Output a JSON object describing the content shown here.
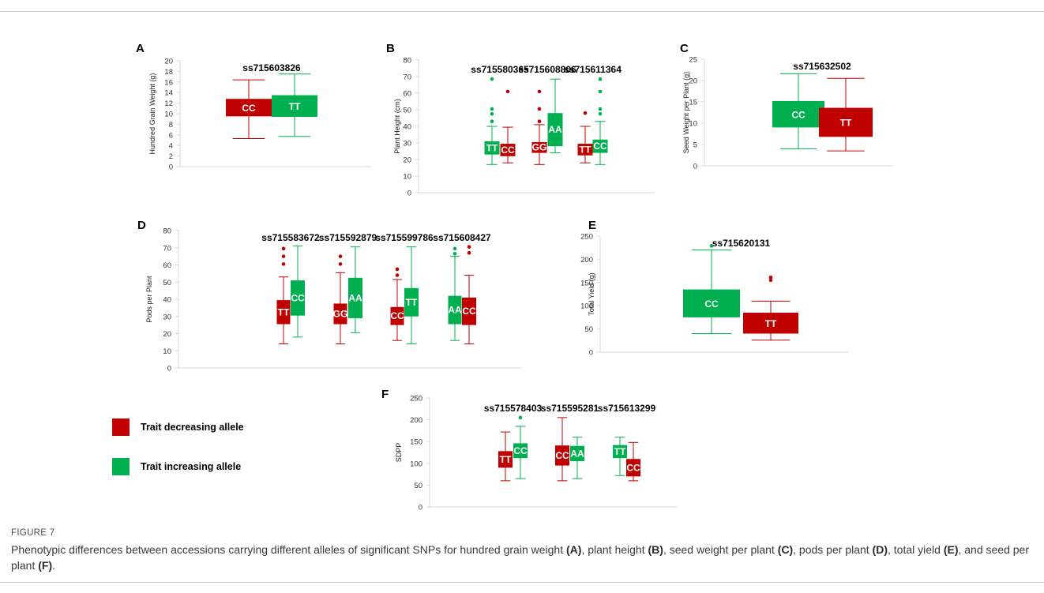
{
  "figure_label": "FIGURE 7",
  "caption": {
    "p1": "Phenotypic differences between accessions carrying different alleles of significant SNPs for hundred grain weight ",
    "A": "(A)",
    "p2": ", plant height ",
    "B": "(B)",
    "p3": ", seed weight per plant ",
    "C": "(C)",
    "p4": ", pods per plant ",
    "D": "(D)",
    "p5": ", total yield ",
    "E": "(E)",
    "p6": ", and seed per plant ",
    "F": "(F)",
    "p7": "."
  },
  "legend": {
    "decreasing": "Trait decreasing allele",
    "increasing": "Trait increasing allele"
  },
  "colors": {
    "decreasing": "#c00000",
    "increasing": "#00b050",
    "axis": "#d9d9d9"
  },
  "chart_data": [
    {
      "panel": "A",
      "type": "box",
      "ylabel": "Hundred Grain Weight (g)",
      "ylim": [
        0,
        20
      ],
      "yticks": [
        0,
        2,
        4,
        6,
        8,
        10,
        12,
        14,
        16,
        18,
        20
      ],
      "groups": [
        {
          "snp": "ss715603826",
          "boxes": [
            {
              "allele": "CC",
              "effect": "decreasing",
              "min": 5.3,
              "q1": 9.5,
              "q3": 12.8,
              "max": 16.4,
              "outliers": []
            },
            {
              "allele": "TT",
              "effect": "increasing",
              "min": 5.7,
              "q1": 9.4,
              "q3": 13.5,
              "max": 17.5,
              "outliers": []
            }
          ]
        }
      ]
    },
    {
      "panel": "B",
      "type": "box",
      "ylabel": "Plant Height (cm)",
      "ylim": [
        0,
        80
      ],
      "yticks": [
        0,
        10,
        20,
        30,
        40,
        50,
        60,
        70,
        80
      ],
      "groups": [
        {
          "snp": "ss715580365",
          "boxes": [
            {
              "allele": "TT",
              "effect": "increasing",
              "min": 17,
              "q1": 23,
              "q3": 31,
              "max": 40,
              "outliers": [
                43,
                47.5,
                50.5,
                68.5
              ]
            },
            {
              "allele": "CC",
              "effect": "decreasing",
              "min": 18,
              "q1": 22,
              "q3": 29.5,
              "max": 39.5,
              "outliers": [
                61
              ]
            }
          ]
        },
        {
          "snp": "ss715608806",
          "boxes": [
            {
              "allele": "GG",
              "effect": "decreasing",
              "min": 17,
              "q1": 24,
              "q3": 30.5,
              "max": 41,
              "outliers": [
                43,
                50.5,
                61
              ]
            },
            {
              "allele": "AA",
              "effect": "increasing",
              "min": 24,
              "q1": 28,
              "q3": 48,
              "max": 68.5,
              "outliers": []
            }
          ]
        },
        {
          "snp": "ss715611364",
          "boxes": [
            {
              "allele": "TT",
              "effect": "decreasing",
              "min": 18,
              "q1": 22.5,
              "q3": 29.5,
              "max": 40,
              "outliers": [
                48
              ]
            },
            {
              "allele": "CC",
              "effect": "increasing",
              "min": 17,
              "q1": 24,
              "q3": 32,
              "max": 43,
              "outliers": [
                47.5,
                50.5,
                61,
                68.5
              ]
            }
          ]
        }
      ]
    },
    {
      "panel": "C",
      "type": "box",
      "ylabel": "Seed Weight per Plant (g)",
      "ylim": [
        0,
        25
      ],
      "yticks": [
        0,
        5,
        10,
        15,
        20,
        25
      ],
      "groups": [
        {
          "snp": "ss715632502",
          "boxes": [
            {
              "allele": "CC",
              "effect": "increasing",
              "min": 4,
              "q1": 9,
              "q3": 15.2,
              "max": 21.6,
              "outliers": []
            },
            {
              "allele": "TT",
              "effect": "decreasing",
              "min": 3.5,
              "q1": 6.8,
              "q3": 13.6,
              "max": 20.5,
              "outliers": []
            }
          ]
        }
      ]
    },
    {
      "panel": "D",
      "type": "box",
      "ylabel": "Pods per Plant",
      "ylim": [
        0,
        80
      ],
      "yticks": [
        0,
        10,
        20,
        30,
        40,
        50,
        60,
        70,
        80
      ],
      "groups": [
        {
          "snp": "ss715583672",
          "boxes": [
            {
              "allele": "TT",
              "effect": "decreasing",
              "min": 14,
              "q1": 25.5,
              "q3": 39.5,
              "max": 53,
              "outliers": [
                60.5,
                65,
                69.5
              ]
            },
            {
              "allele": "CC",
              "effect": "increasing",
              "min": 18,
              "q1": 30.5,
              "q3": 51,
              "max": 71,
              "outliers": []
            }
          ]
        },
        {
          "snp": "ss715592879",
          "boxes": [
            {
              "allele": "GG",
              "effect": "decreasing",
              "min": 14,
              "q1": 25.5,
              "q3": 37.5,
              "max": 55.5,
              "outliers": [
                60.5,
                65
              ]
            },
            {
              "allele": "AA",
              "effect": "increasing",
              "min": 20.5,
              "q1": 29,
              "q3": 52.5,
              "max": 70.5,
              "outliers": []
            }
          ]
        },
        {
          "snp": "ss715599786",
          "boxes": [
            {
              "allele": "CC",
              "effect": "decreasing",
              "min": 16,
              "q1": 25,
              "q3": 35.5,
              "max": 51.5,
              "outliers": [
                54,
                57.5
              ]
            },
            {
              "allele": "TT",
              "effect": "increasing",
              "min": 14,
              "q1": 30,
              "q3": 46.5,
              "max": 70.5,
              "outliers": []
            }
          ]
        },
        {
          "snp": "ss715608427",
          "boxes": [
            {
              "allele": "AA",
              "effect": "increasing",
              "min": 16,
              "q1": 25.5,
              "q3": 42,
              "max": 65,
              "outliers": [
                66.5,
                69.5
              ]
            },
            {
              "allele": "CC",
              "effect": "decreasing",
              "min": 14,
              "q1": 25,
              "q3": 41,
              "max": 54,
              "outliers": [
                67,
                70.5
              ]
            }
          ]
        }
      ]
    },
    {
      "panel": "E",
      "type": "box",
      "ylabel": "Total Yield (g)",
      "ylim": [
        0,
        250
      ],
      "yticks": [
        0,
        50,
        100,
        150,
        200,
        250
      ],
      "groups": [
        {
          "snp": "ss715620131",
          "boxes": [
            {
              "allele": "CC",
              "effect": "increasing",
              "min": 40,
              "q1": 75,
              "q3": 135,
              "max": 220,
              "outliers": [
                229
              ]
            },
            {
              "allele": "TT",
              "effect": "decreasing",
              "min": 26,
              "q1": 40,
              "q3": 85,
              "max": 110,
              "outliers": [
                155,
                161
              ]
            }
          ]
        }
      ]
    },
    {
      "panel": "F",
      "type": "box",
      "ylabel": "SDPP",
      "ylim": [
        0,
        250
      ],
      "yticks": [
        0,
        50,
        100,
        150,
        200,
        250
      ],
      "groups": [
        {
          "snp": "ss715578403",
          "boxes": [
            {
              "allele": "TT",
              "effect": "decreasing",
              "min": 60,
              "q1": 90,
              "q3": 128,
              "max": 172,
              "outliers": []
            },
            {
              "allele": "CC",
              "effect": "increasing",
              "min": 65,
              "q1": 112,
              "q3": 146,
              "max": 185,
              "outliers": [
                205
              ]
            }
          ]
        },
        {
          "snp": "ss715595281",
          "boxes": [
            {
              "allele": "CC",
              "effect": "decreasing",
              "min": 60,
              "q1": 95,
              "q3": 141,
              "max": 205,
              "outliers": []
            },
            {
              "allele": "AA",
              "effect": "increasing",
              "min": 65,
              "q1": 105,
              "q3": 140,
              "max": 160,
              "outliers": []
            }
          ]
        },
        {
          "snp": "ss715613299",
          "boxes": [
            {
              "allele": "TT",
              "effect": "increasing",
              "min": 72,
              "q1": 112,
              "q3": 142,
              "max": 160,
              "outliers": []
            },
            {
              "allele": "CC",
              "effect": "decreasing",
              "min": 60,
              "q1": 70,
              "q3": 110,
              "max": 148,
              "outliers": []
            }
          ]
        }
      ]
    }
  ]
}
